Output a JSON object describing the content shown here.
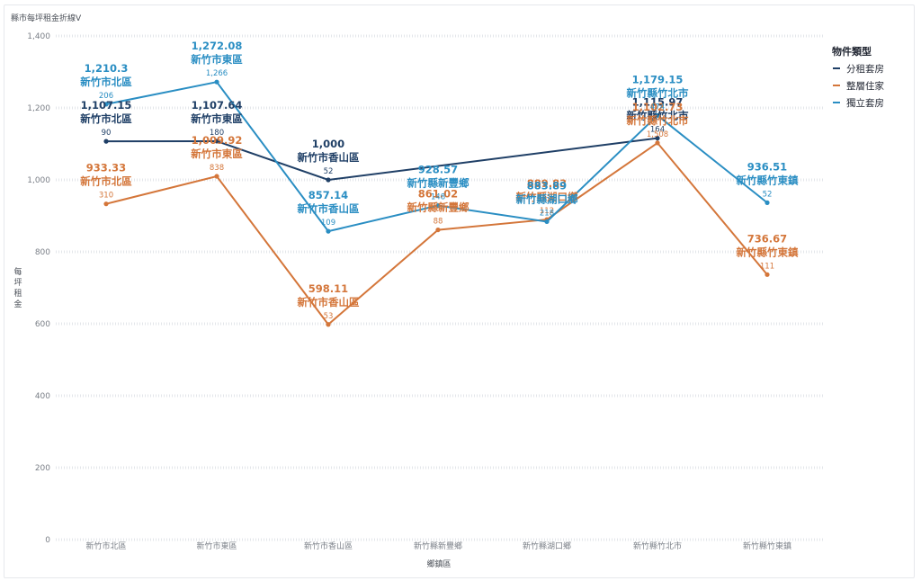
{
  "chart_data": {
    "type": "line",
    "title": "縣市每坪租金折線V",
    "xlabel": "鄉鎮區",
    "ylabel": "每坪租金",
    "ylim": [
      0,
      1400
    ],
    "yticks": [
      0,
      200,
      400,
      600,
      800,
      1000,
      1200,
      1400
    ],
    "ytick_labels": [
      "0",
      "200",
      "400",
      "600",
      "800",
      "1,000",
      "1,200",
      "1,400"
    ],
    "categories": [
      "新竹市北區",
      "新竹市東區",
      "新竹市香山區",
      "新竹縣新豐鄉",
      "新竹縣湖口鄉",
      "新竹縣竹北市",
      "新竹縣竹東鎮"
    ],
    "legend": {
      "title": "物件類型",
      "position": "right"
    },
    "grid": true,
    "series": [
      {
        "name": "分租套房",
        "color": "#1f3f66",
        "values": [
          1107.15,
          1107.64,
          1000,
          null,
          null,
          1115.97,
          null
        ],
        "value_labels": [
          "1,107.15",
          "1,107.64",
          "1,000",
          null,
          null,
          "1,115.97",
          null
        ],
        "counts": [
          "90",
          "180",
          "52",
          null,
          null,
          "164",
          null
        ]
      },
      {
        "name": "整層住家",
        "color": "#d4763a",
        "values": [
          933.33,
          1009.92,
          598.11,
          861.02,
          889.83,
          1102.73,
          736.67
        ],
        "value_labels": [
          "933.33",
          "1,009.92",
          "598.11",
          "861.02",
          "889.83",
          "1,102.73",
          "736.67"
        ],
        "counts": [
          "310",
          "838",
          "53",
          "88",
          "112",
          "1,508",
          "111"
        ]
      },
      {
        "name": "獨立套房",
        "color": "#2a8ec3",
        "values": [
          1210.3,
          1272.08,
          857.14,
          928.57,
          883.89,
          1179.15,
          936.51
        ],
        "value_labels": [
          "1,210.3",
          "1,272.08",
          "857.14",
          "928.57",
          "883.89",
          "1,179.15",
          "936.51"
        ],
        "counts": [
          "206",
          "1,266",
          "109",
          "148",
          "218",
          "474",
          "52"
        ]
      }
    ]
  }
}
